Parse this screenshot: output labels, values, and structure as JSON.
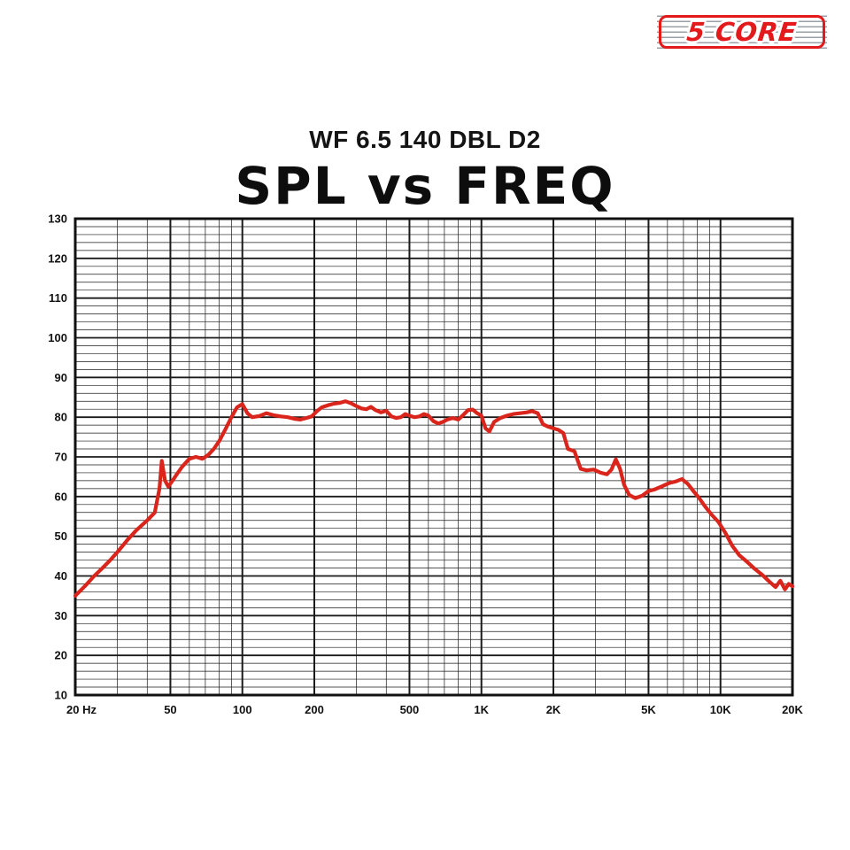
{
  "logo": {
    "brand": "5 CORE",
    "color": "#e3191c"
  },
  "chart_data": {
    "type": "line",
    "title": "SPL vs FREQ",
    "subtitle": "WF 6.5 140 DBL D2",
    "xlabel": "",
    "ylabel": "",
    "x_scale": "log",
    "xlim": [
      20,
      20000
    ],
    "ylim": [
      10,
      130
    ],
    "y_major_step": 10,
    "y_minor_step": 2,
    "grid": true,
    "grid_color": "#1a1a1a",
    "line_color": "#da251c",
    "legend": "none",
    "x_ticks": [
      {
        "value": 20,
        "label": "20 Hz"
      },
      {
        "value": 50,
        "label": "50"
      },
      {
        "value": 100,
        "label": "100"
      },
      {
        "value": 200,
        "label": "200"
      },
      {
        "value": 500,
        "label": "500"
      },
      {
        "value": 1000,
        "label": "1K"
      },
      {
        "value": 2000,
        "label": "2K"
      },
      {
        "value": 5000,
        "label": "5K"
      },
      {
        "value": 10000,
        "label": "10K"
      },
      {
        "value": 20000,
        "label": "20K"
      }
    ],
    "series": [
      {
        "name": "SPL",
        "points": [
          [
            20,
            35
          ],
          [
            22,
            37.5
          ],
          [
            24,
            40
          ],
          [
            26,
            42
          ],
          [
            28,
            44
          ],
          [
            30,
            46
          ],
          [
            33,
            49
          ],
          [
            36,
            51.5
          ],
          [
            40,
            54
          ],
          [
            43,
            56
          ],
          [
            45,
            62
          ],
          [
            46,
            69
          ],
          [
            47.5,
            64
          ],
          [
            49,
            62.5
          ],
          [
            51,
            64
          ],
          [
            53,
            65.5
          ],
          [
            56,
            67.5
          ],
          [
            60,
            69.5
          ],
          [
            64,
            70
          ],
          [
            68,
            69.5
          ],
          [
            72,
            70.5
          ],
          [
            76,
            72
          ],
          [
            80,
            74
          ],
          [
            85,
            77
          ],
          [
            90,
            80
          ],
          [
            95,
            82.5
          ],
          [
            100,
            83.3
          ],
          [
            105,
            81
          ],
          [
            110,
            80
          ],
          [
            118,
            80.3
          ],
          [
            126,
            81
          ],
          [
            135,
            80.5
          ],
          [
            145,
            80.2
          ],
          [
            155,
            80
          ],
          [
            165,
            79.6
          ],
          [
            175,
            79.4
          ],
          [
            185,
            79.8
          ],
          [
            195,
            80.2
          ],
          [
            205,
            81.5
          ],
          [
            215,
            82.5
          ],
          [
            228,
            83
          ],
          [
            242,
            83.4
          ],
          [
            256,
            83.6
          ],
          [
            270,
            84
          ],
          [
            285,
            83.5
          ],
          [
            300,
            82.8
          ],
          [
            315,
            82.2
          ],
          [
            330,
            82
          ],
          [
            345,
            82.6
          ],
          [
            360,
            81.8
          ],
          [
            380,
            81.2
          ],
          [
            400,
            81.6
          ],
          [
            420,
            80.2
          ],
          [
            440,
            79.8
          ],
          [
            460,
            80
          ],
          [
            480,
            80.8
          ],
          [
            500,
            80.4
          ],
          [
            525,
            80
          ],
          [
            550,
            80.2
          ],
          [
            575,
            80.8
          ],
          [
            600,
            80.4
          ],
          [
            630,
            79
          ],
          [
            660,
            78.4
          ],
          [
            690,
            78.8
          ],
          [
            720,
            79.4
          ],
          [
            760,
            79.8
          ],
          [
            800,
            79.4
          ],
          [
            840,
            80.6
          ],
          [
            880,
            81.8
          ],
          [
            920,
            81.9
          ],
          [
            960,
            81
          ],
          [
            1000,
            80.4
          ],
          [
            1040,
            77.2
          ],
          [
            1080,
            76.4
          ],
          [
            1130,
            78.8
          ],
          [
            1200,
            79.8
          ],
          [
            1280,
            80.4
          ],
          [
            1360,
            80.8
          ],
          [
            1450,
            81
          ],
          [
            1540,
            81.2
          ],
          [
            1630,
            81.5
          ],
          [
            1720,
            81
          ],
          [
            1810,
            78.2
          ],
          [
            1900,
            77.6
          ],
          [
            2000,
            77.2
          ],
          [
            2100,
            76.8
          ],
          [
            2200,
            76
          ],
          [
            2300,
            72
          ],
          [
            2450,
            71.4
          ],
          [
            2600,
            67
          ],
          [
            2750,
            66.6
          ],
          [
            2950,
            66.8
          ],
          [
            3150,
            66
          ],
          [
            3350,
            65.6
          ],
          [
            3500,
            66.8
          ],
          [
            3650,
            69.4
          ],
          [
            3800,
            67
          ],
          [
            3950,
            63
          ],
          [
            4150,
            60.4
          ],
          [
            4400,
            59.6
          ],
          [
            4700,
            60.2
          ],
          [
            5000,
            61.4
          ],
          [
            5300,
            61.8
          ],
          [
            5700,
            62.6
          ],
          [
            6100,
            63.4
          ],
          [
            6500,
            63.8
          ],
          [
            6900,
            64.4
          ],
          [
            7300,
            63.2
          ],
          [
            7700,
            61.4
          ],
          [
            8100,
            59.8
          ],
          [
            8600,
            57.6
          ],
          [
            9200,
            55.4
          ],
          [
            9800,
            53.6
          ],
          [
            10500,
            50.8
          ],
          [
            11200,
            47.6
          ],
          [
            12000,
            45.2
          ],
          [
            12900,
            43.6
          ],
          [
            13900,
            41.8
          ],
          [
            15000,
            40.2
          ],
          [
            16000,
            38.6
          ],
          [
            17000,
            37.2
          ],
          [
            17800,
            38.8
          ],
          [
            18600,
            36.6
          ],
          [
            19300,
            38
          ],
          [
            20000,
            37.4
          ]
        ]
      }
    ]
  }
}
